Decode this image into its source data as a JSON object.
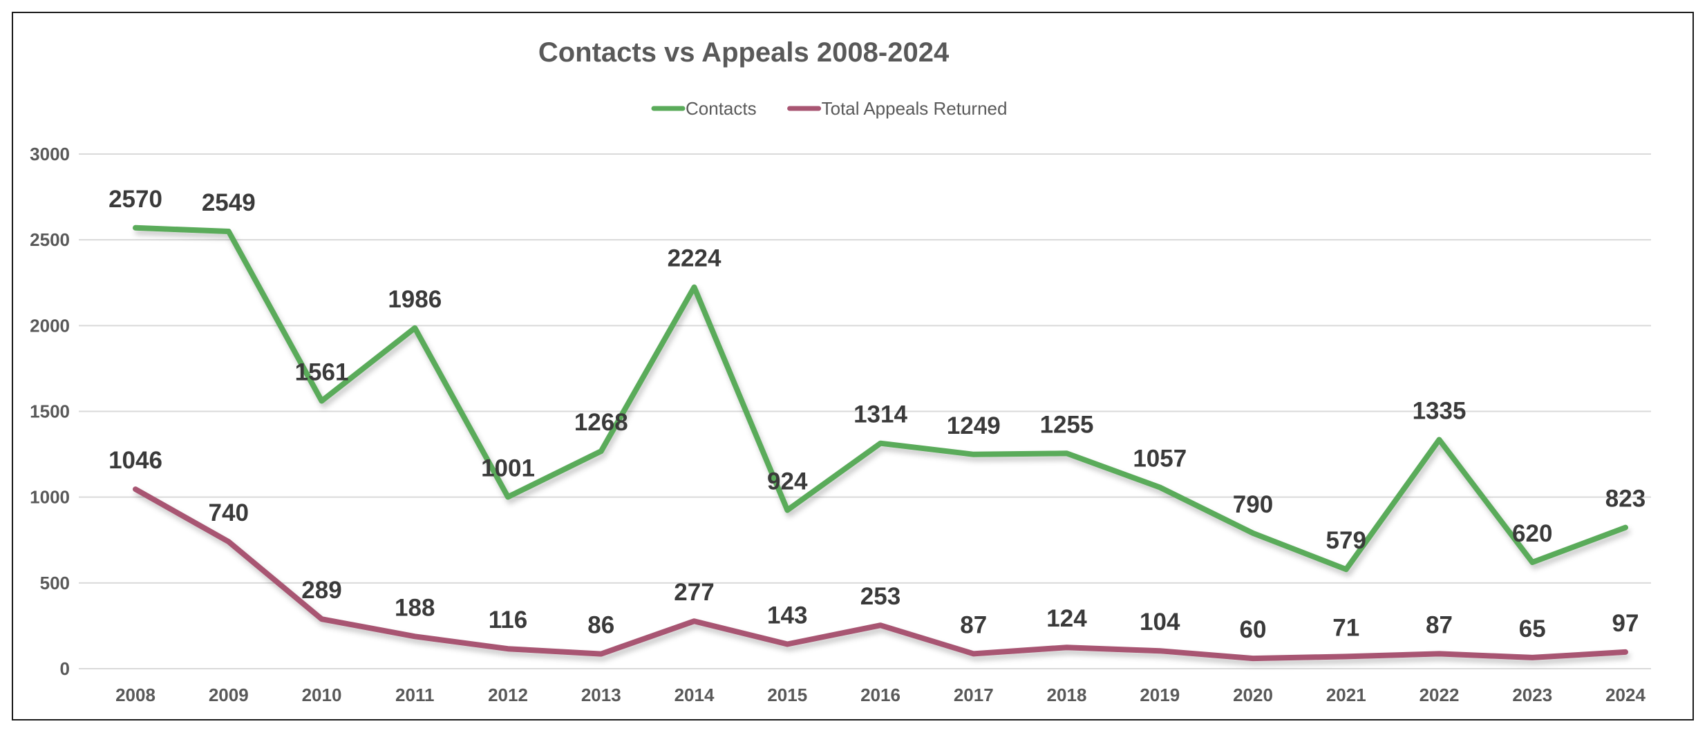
{
  "chart_data": {
    "type": "line",
    "title": "Contacts vs Appeals 2008-2024",
    "xlabel": "",
    "ylabel": "",
    "categories": [
      "2008",
      "2009",
      "2010",
      "2011",
      "2012",
      "2013",
      "2014",
      "2015",
      "2016",
      "2017",
      "2018",
      "2019",
      "2020",
      "2021",
      "2022",
      "2023",
      "2024"
    ],
    "series": [
      {
        "name": "Contacts",
        "color": "#5aab5a",
        "values": [
          2570,
          2549,
          1561,
          1986,
          1001,
          1268,
          2224,
          924,
          1314,
          1249,
          1255,
          1057,
          790,
          579,
          1335,
          620,
          823
        ]
      },
      {
        "name": "Total Appeals Returned",
        "color": "#a85572",
        "values": [
          1046,
          740,
          289,
          188,
          116,
          86,
          277,
          143,
          253,
          87,
          124,
          104,
          60,
          71,
          87,
          65,
          97
        ]
      }
    ],
    "ylim": [
      0,
      3000
    ],
    "yticks": [
      0,
      500,
      1000,
      1500,
      2000,
      2500,
      3000
    ],
    "grid": true,
    "legend_position": "top-center",
    "data_labels": true
  }
}
